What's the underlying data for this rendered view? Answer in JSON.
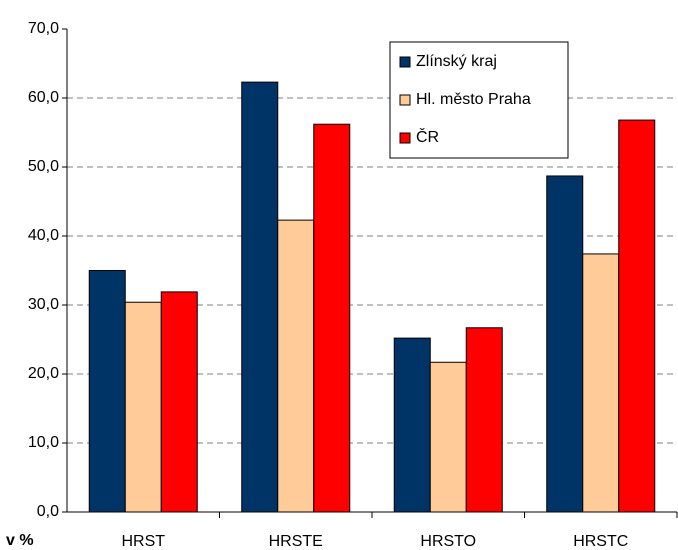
{
  "chart_data": {
    "type": "bar",
    "y_label": "v %",
    "categories": [
      "HRST",
      "HRSTE",
      "HRSTO",
      "HRSTC"
    ],
    "series": [
      {
        "name": "Zlínský kraj",
        "color": "#003366",
        "values": [
          35.0,
          62.3,
          25.2,
          48.7
        ]
      },
      {
        "name": "Hl. město Praha",
        "color": "#FFCC99",
        "values": [
          30.4,
          42.3,
          21.7,
          37.4
        ]
      },
      {
        "name": "ČR",
        "color": "#FF0000",
        "values": [
          31.9,
          56.2,
          26.7,
          56.8
        ]
      }
    ],
    "ylim": [
      0,
      70
    ],
    "yticks": [
      {
        "value": 0,
        "label": "0,0"
      },
      {
        "value": 10,
        "label": "10,0"
      },
      {
        "value": 20,
        "label": "20,0"
      },
      {
        "value": 30,
        "label": "30,0"
      },
      {
        "value": 40,
        "label": "40,0"
      },
      {
        "value": 50,
        "label": "50,0"
      },
      {
        "value": 60,
        "label": "60,0"
      },
      {
        "value": 70,
        "label": "70,0"
      }
    ],
    "grid": true,
    "legend": "upper right"
  }
}
